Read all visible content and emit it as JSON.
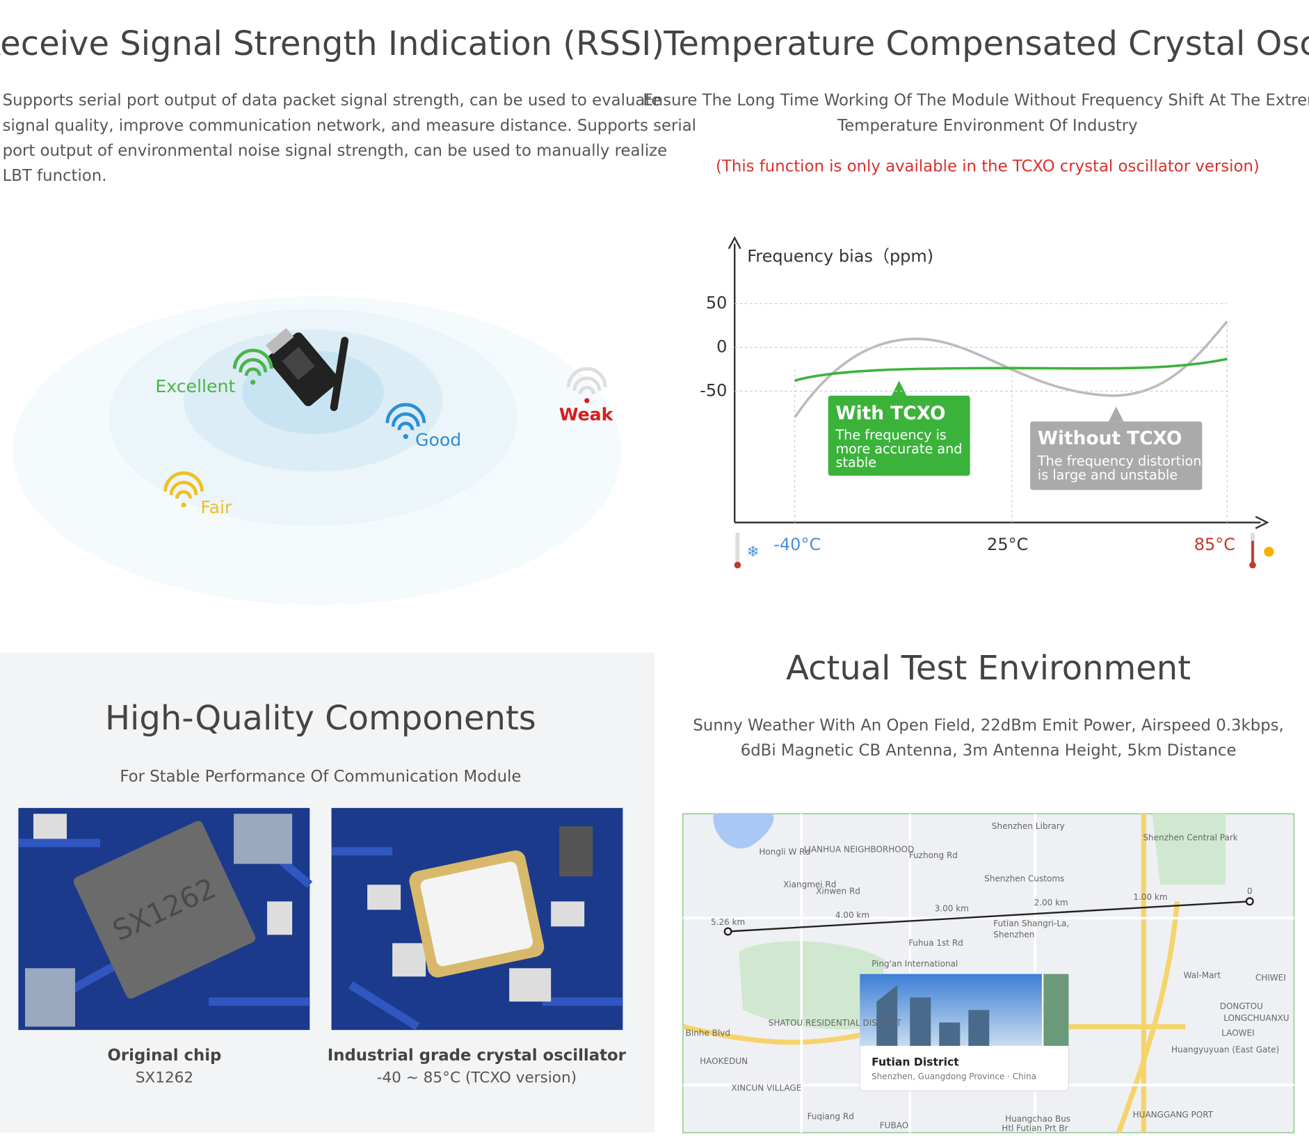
{
  "rssi": {
    "title": "Receive Signal Strength Indication (RSSI)",
    "description": [
      "Supports serial port output of data packet signal strength, can be used to evaluate",
      "signal quality, improve communication network, and measure distance. Supports serial",
      "port output of environmental noise signal strength, can be used to manually realize",
      "LBT function."
    ],
    "levels": {
      "excellent": "Excellent",
      "good": "Good",
      "weak": "Weak",
      "fair": "Fair"
    }
  },
  "tcxo": {
    "title": "Temperature Compensated Crystal Oscillator",
    "description": [
      "Ensure The Long Time Working Of The Module Without Frequency Shift At The Extreme",
      "Temperature Environment Of Industry"
    ],
    "note": "(This function is only available in the TCXO crystal oscillator version)",
    "diagram": {
      "y_label": "Frequency bias（ppm)",
      "ylim": [
        -200,
        125
      ],
      "yticks": [
        50,
        0,
        -50
      ],
      "x_labels": [
        "-40°C",
        "25°C",
        "85°C"
      ],
      "with_box": {
        "title": "With TCXO",
        "text": [
          "The frequency is",
          "more accurate and",
          "stable"
        ]
      },
      "without_box": {
        "title": "Without TCXO",
        "text": [
          "The frequency distortion",
          "is large and unstable"
        ]
      }
    }
  },
  "components": {
    "title": "High-Quality Components",
    "subtitle": "For Stable Performance Of Communication Module",
    "items": [
      {
        "image_label": "SX1262",
        "title": "Original chip",
        "text": "SX1262"
      },
      {
        "title": "Industrial grade crystal oscillator",
        "text": "-40 ~ 85°C (TCXO version)"
      }
    ]
  },
  "test": {
    "title": "Actual Test Environment",
    "description": [
      "Sunny Weather With An Open Field, 22dBm Emit Power, Airspeed 0.3kbps,",
      "6dBi Magnetic CB Antenna, 3m Antenna Height, 5km Distance"
    ],
    "map": {
      "labels": [
        "Shenzhen Library",
        "LIANHUA NEIGHBORHOOD",
        "Hongli W Rd",
        "Fuzhong Rd",
        "Xiangmei Rd",
        "Xinwen Rd",
        "Shenzhen Customs",
        "Shenzhen Central Park",
        "5.26 km",
        "4.00 km",
        "3.00 km",
        "2.00 km",
        "1.00 km",
        "0",
        "Futian Shangri-La,",
        "Shenzhen",
        "Fuhua 1st Rd",
        "Ping'an International",
        "SHATOU RESIDENTIAL DISTRICT",
        "Binhe Blvd",
        "HAOKEDUN",
        "XINCUN VILLAGE",
        "Fuqiang Rd",
        "FUBAO",
        "Wal-Mart",
        "CHIWEI",
        "DONGTOU",
        "LONGCHUANXU",
        "LAOWEI",
        "Huangyuyuan (East Gate)",
        "HUANGGANG PORT",
        "Huangchao Bus",
        "Htl Futian Prt Br"
      ],
      "card": {
        "title": "Futian District",
        "subtitle": "Shenzhen, Guangdong Province · China"
      }
    }
  }
}
